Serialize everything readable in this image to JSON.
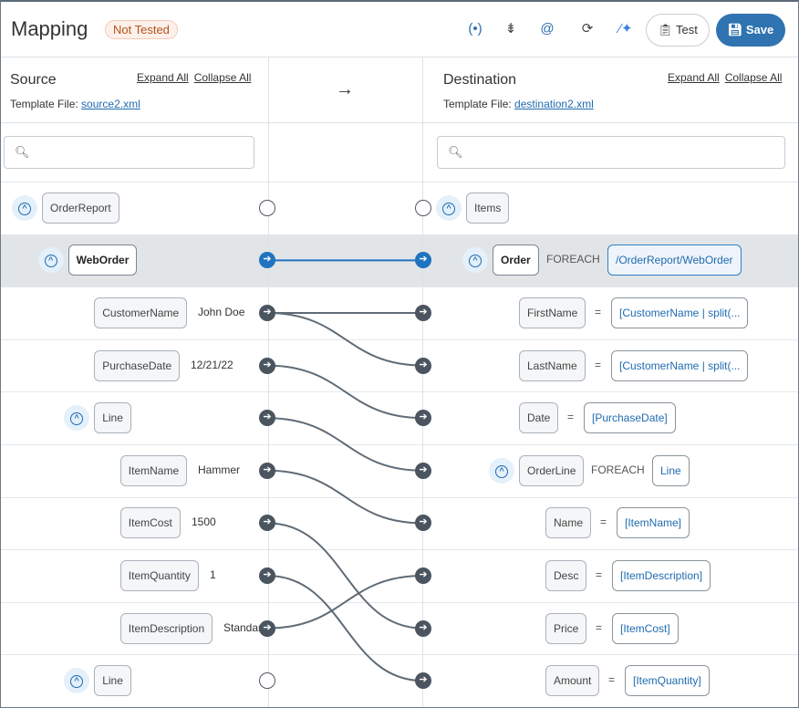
{
  "header": {
    "title": "Mapping",
    "status_badge": "Not Tested",
    "toolbar_icons": [
      "broadcast-icon",
      "collapse-vertical-icon",
      "at-icon",
      "refresh-icon",
      "magic-wand-icon"
    ],
    "test_label": "Test",
    "save_label": "Save"
  },
  "center_arrow": "→",
  "source": {
    "title": "Source",
    "expand_all": "Expand All",
    "collapse_all": "Collapse All",
    "template_label": "Template File:",
    "template_file": "source2.xml",
    "search_placeholder": "",
    "rows": [
      {
        "name": "OrderReport",
        "level": 0,
        "expandable": true,
        "value": "",
        "port": "off"
      },
      {
        "name": "WebOrder",
        "level": 1,
        "expandable": true,
        "value": "",
        "port": "active",
        "selected": true
      },
      {
        "name": "CustomerName",
        "level": 2,
        "expandable": false,
        "value": "John Doe",
        "port": "on"
      },
      {
        "name": "PurchaseDate",
        "level": 2,
        "expandable": false,
        "value": "12/21/22",
        "port": "on"
      },
      {
        "name": "Line",
        "level": 2,
        "expandable": true,
        "value": "",
        "port": "on"
      },
      {
        "name": "ItemName",
        "level": 3,
        "expandable": false,
        "value": "Hammer",
        "port": "on"
      },
      {
        "name": "ItemCost",
        "level": 3,
        "expandable": false,
        "value": "1500",
        "port": "on"
      },
      {
        "name": "ItemQuantity",
        "level": 3,
        "expandable": false,
        "value": "1",
        "port": "on"
      },
      {
        "name": "ItemDescription",
        "level": 3,
        "expandable": false,
        "value": "Standar",
        "port": "on"
      },
      {
        "name": "Line",
        "level": 2,
        "expandable": true,
        "value": "",
        "port": "off"
      }
    ]
  },
  "destination": {
    "title": "Destination",
    "expand_all": "Expand All",
    "collapse_all": "Collapse All",
    "template_label": "Template File:",
    "template_file": "destination2.xml",
    "search_placeholder": "",
    "rows": [
      {
        "name": "Items",
        "level": 0,
        "expandable": true,
        "op": "",
        "expr": "",
        "port": "off"
      },
      {
        "name": "Order",
        "level": 1,
        "expandable": true,
        "op": "FOREACH",
        "expr": "/OrderReport/WebOrder",
        "port": "active",
        "selected": true
      },
      {
        "name": "FirstName",
        "level": 2,
        "expandable": false,
        "op": "=",
        "expr": "[CustomerName | split(...",
        "port": "on"
      },
      {
        "name": "LastName",
        "level": 2,
        "expandable": false,
        "op": "=",
        "expr": "[CustomerName | split(...",
        "port": "on"
      },
      {
        "name": "Date",
        "level": 2,
        "expandable": false,
        "op": "=",
        "expr": "[PurchaseDate]",
        "port": "on"
      },
      {
        "name": "OrderLine",
        "level": 2,
        "expandable": true,
        "op": "FOREACH",
        "expr": "Line",
        "port": "on"
      },
      {
        "name": "Name",
        "level": 3,
        "expandable": false,
        "op": "=",
        "expr": "[ItemName]",
        "port": "on"
      },
      {
        "name": "Desc",
        "level": 3,
        "expandable": false,
        "op": "=",
        "expr": "[ItemDescription]",
        "port": "on"
      },
      {
        "name": "Price",
        "level": 3,
        "expandable": false,
        "op": "=",
        "expr": "[ItemCost]",
        "port": "on"
      },
      {
        "name": "Amount",
        "level": 3,
        "expandable": false,
        "op": "=",
        "expr": "[ItemQuantity]",
        "port": "on"
      }
    ]
  },
  "mappings": [
    [
      1,
      1
    ],
    [
      2,
      2
    ],
    [
      2,
      3
    ],
    [
      3,
      4
    ],
    [
      4,
      5
    ],
    [
      5,
      6
    ],
    [
      6,
      8
    ],
    [
      7,
      9
    ],
    [
      8,
      7
    ]
  ],
  "colors": {
    "accent": "#2f73b0",
    "active_link": "#1f73bf",
    "link": "#5f6b76",
    "selected_row": "#e2e5e8",
    "badge_text": "#b2541c"
  }
}
